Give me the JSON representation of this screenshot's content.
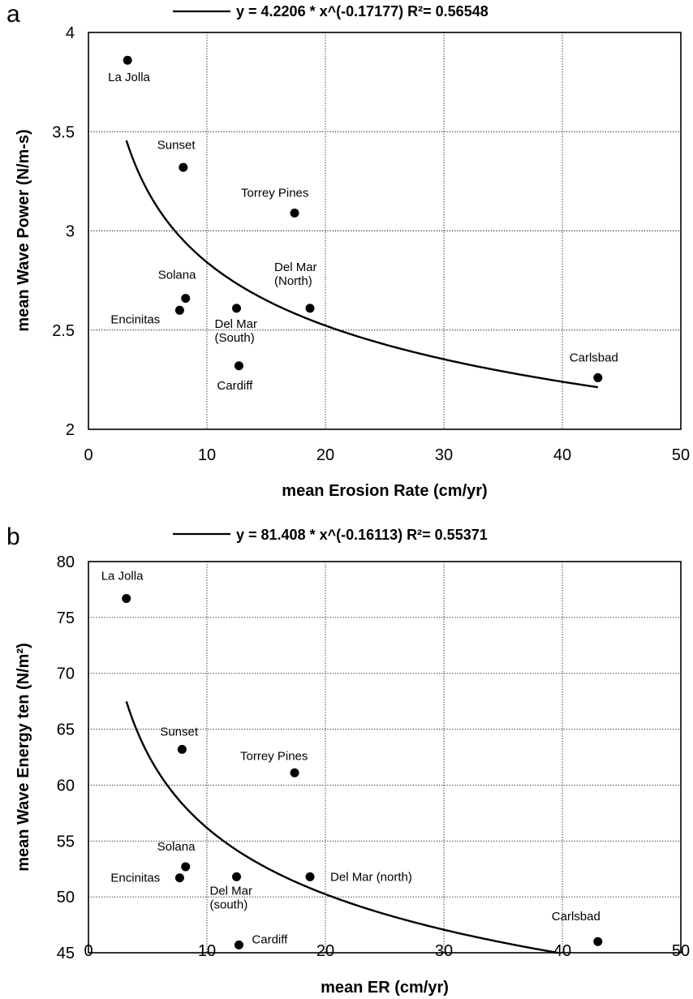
{
  "chart_data": [
    {
      "type": "scatter",
      "panel_label": "a",
      "fit_equation": "y = 4.2206 * x^(-0.17177) R²= 0.56548",
      "fit": {
        "a": 4.2206,
        "b": -0.17177,
        "x_range": [
          3.2,
          43
        ]
      },
      "xlabel": "mean Erosion Rate (cm/yr)",
      "ylabel": "mean Wave Power (N/m-s)",
      "xlim": [
        0,
        50
      ],
      "ylim": [
        2,
        4
      ],
      "x_ticks": [
        0,
        10,
        20,
        30,
        40,
        50
      ],
      "y_ticks": [
        2,
        2.5,
        3,
        3.5,
        4
      ],
      "grid": true,
      "points": [
        {
          "label": [
            "La Jolla"
          ],
          "x": 3.3,
          "y": 3.86
        },
        {
          "label": [
            "Sunset"
          ],
          "x": 8.0,
          "y": 3.32
        },
        {
          "label": [
            "Torrey Pines"
          ],
          "x": 17.4,
          "y": 3.09
        },
        {
          "label": [
            "Solana"
          ],
          "x": 8.2,
          "y": 2.66
        },
        {
          "label": [
            "Encinitas"
          ],
          "x": 7.7,
          "y": 2.6
        },
        {
          "label": [
            "Del Mar",
            "(South)"
          ],
          "x": 12.5,
          "y": 2.61
        },
        {
          "label": [
            "Del Mar",
            "(North)"
          ],
          "x": 18.7,
          "y": 2.61
        },
        {
          "label": [
            "Cardiff"
          ],
          "x": 12.7,
          "y": 2.32
        },
        {
          "label": [
            "Carlsbad"
          ],
          "x": 43.0,
          "y": 2.26
        }
      ]
    },
    {
      "type": "scatter",
      "panel_label": "b",
      "fit_equation": "y = 81.408 * x^(-0.16113) R²= 0.55371",
      "fit": {
        "a": 81.408,
        "b": -0.16113,
        "x_range": [
          3.2,
          39.6
        ]
      },
      "xlabel": "mean ER (cm/yr)",
      "ylabel": "mean Wave Energy ten (N/m²)",
      "xlim": [
        0,
        50
      ],
      "ylim": [
        45,
        80
      ],
      "x_ticks": [
        0,
        10,
        20,
        30,
        40,
        50
      ],
      "y_ticks": [
        45,
        50,
        55,
        60,
        65,
        70,
        75,
        80
      ],
      "grid": true,
      "points": [
        {
          "label": [
            "La Jolla"
          ],
          "x": 3.2,
          "y": 76.7
        },
        {
          "label": [
            "Sunset"
          ],
          "x": 7.9,
          "y": 63.2
        },
        {
          "label": [
            "Torrey Pines"
          ],
          "x": 17.4,
          "y": 61.1
        },
        {
          "label": [
            "Solana"
          ],
          "x": 8.2,
          "y": 52.7
        },
        {
          "label": [
            "Encinitas"
          ],
          "x": 7.7,
          "y": 51.7
        },
        {
          "label": [
            "Del Mar",
            "(south)"
          ],
          "x": 12.5,
          "y": 51.8
        },
        {
          "label": [
            "Del Mar (north)"
          ],
          "x": 18.7,
          "y": 51.8
        },
        {
          "label": [
            "Cardiff"
          ],
          "x": 12.7,
          "y": 45.7
        },
        {
          "label": [
            "Carlsbad"
          ],
          "x": 43.0,
          "y": 46.0
        }
      ]
    }
  ]
}
